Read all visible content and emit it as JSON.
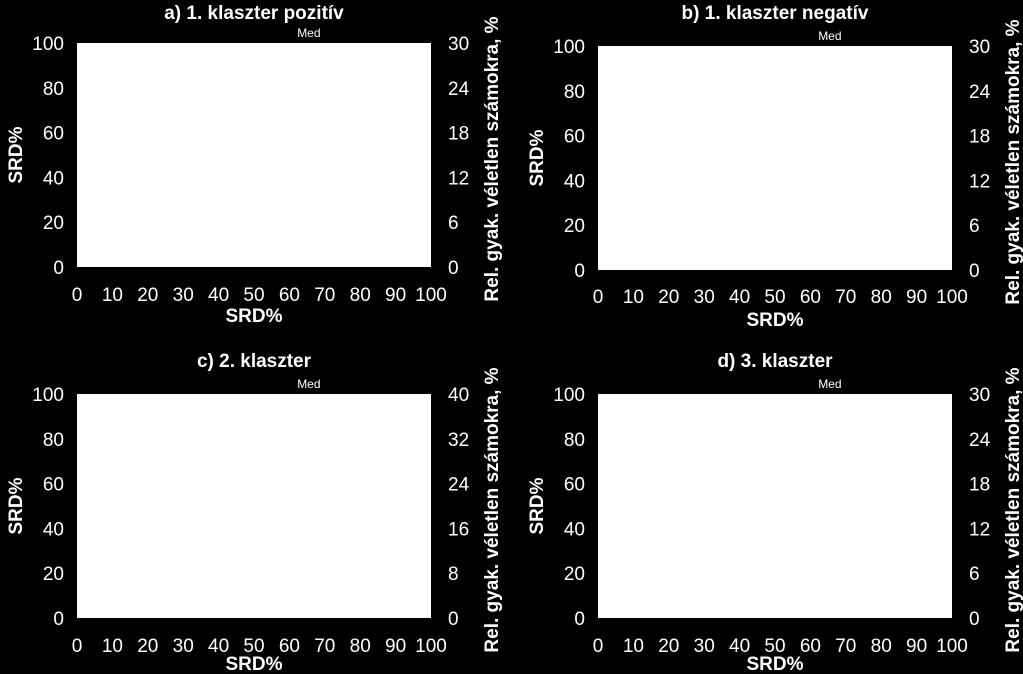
{
  "chart_data": [
    {
      "type": "line",
      "title": "a) 1. klaszter pozitív",
      "annotation": "Med",
      "xlabel": "SRD%",
      "ylabel": "SRD%",
      "y2label": "Rel. gyak. véletlen számokra, %",
      "xlim": [
        0,
        100
      ],
      "ylim": [
        0,
        100
      ],
      "y2lim": [
        0,
        30
      ],
      "xticks": [
        "0",
        "10",
        "20",
        "30",
        "40",
        "50",
        "60",
        "70",
        "80",
        "90",
        "100"
      ],
      "yticks": [
        "0",
        "20",
        "40",
        "60",
        "80",
        "100"
      ],
      "y2ticks": [
        "0",
        "6",
        "12",
        "18",
        "24",
        "30"
      ],
      "series": []
    },
    {
      "type": "line",
      "title": "b) 1. klaszter negatív",
      "annotation": "Med",
      "xlabel": "SRD%",
      "ylabel": "SRD%",
      "y2label": "Rel. gyak. véletlen számokra, %",
      "xlim": [
        0,
        100
      ],
      "ylim": [
        0,
        100
      ],
      "y2lim": [
        0,
        30
      ],
      "xticks": [
        "0",
        "10",
        "20",
        "30",
        "40",
        "50",
        "60",
        "70",
        "80",
        "90",
        "100"
      ],
      "yticks": [
        "0",
        "20",
        "40",
        "60",
        "80",
        "100"
      ],
      "y2ticks": [
        "0",
        "6",
        "12",
        "18",
        "24",
        "30"
      ],
      "series": []
    },
    {
      "type": "line",
      "title": "c) 2. klaszter",
      "annotation": "Med",
      "xlabel": "SRD%",
      "ylabel": "SRD%",
      "y2label": "Rel. gyak. véletlen számokra, %",
      "xlim": [
        0,
        100
      ],
      "ylim": [
        0,
        100
      ],
      "y2lim": [
        0,
        40
      ],
      "xticks": [
        "0",
        "10",
        "20",
        "30",
        "40",
        "50",
        "60",
        "70",
        "80",
        "90",
        "100"
      ],
      "yticks": [
        "0",
        "20",
        "40",
        "60",
        "80",
        "100"
      ],
      "y2ticks": [
        "0",
        "8",
        "16",
        "24",
        "32",
        "40"
      ],
      "series": []
    },
    {
      "type": "line",
      "title": "d) 3. klaszter",
      "annotation": "Med",
      "xlabel": "SRD%",
      "ylabel": "SRD%",
      "y2label": "Rel. gyak. véletlen számokra, %",
      "xlim": [
        0,
        100
      ],
      "ylim": [
        0,
        100
      ],
      "y2lim": [
        0,
        30
      ],
      "xticks": [
        "0",
        "10",
        "20",
        "30",
        "40",
        "50",
        "60",
        "70",
        "80",
        "90",
        "100"
      ],
      "yticks": [
        "0",
        "20",
        "40",
        "60",
        "80",
        "100"
      ],
      "y2ticks": [
        "0",
        "6",
        "12",
        "18",
        "24",
        "30"
      ],
      "series": []
    }
  ],
  "colors": {
    "background": "#000000",
    "plot_area": "#ffffff",
    "text": "#ffffff"
  }
}
